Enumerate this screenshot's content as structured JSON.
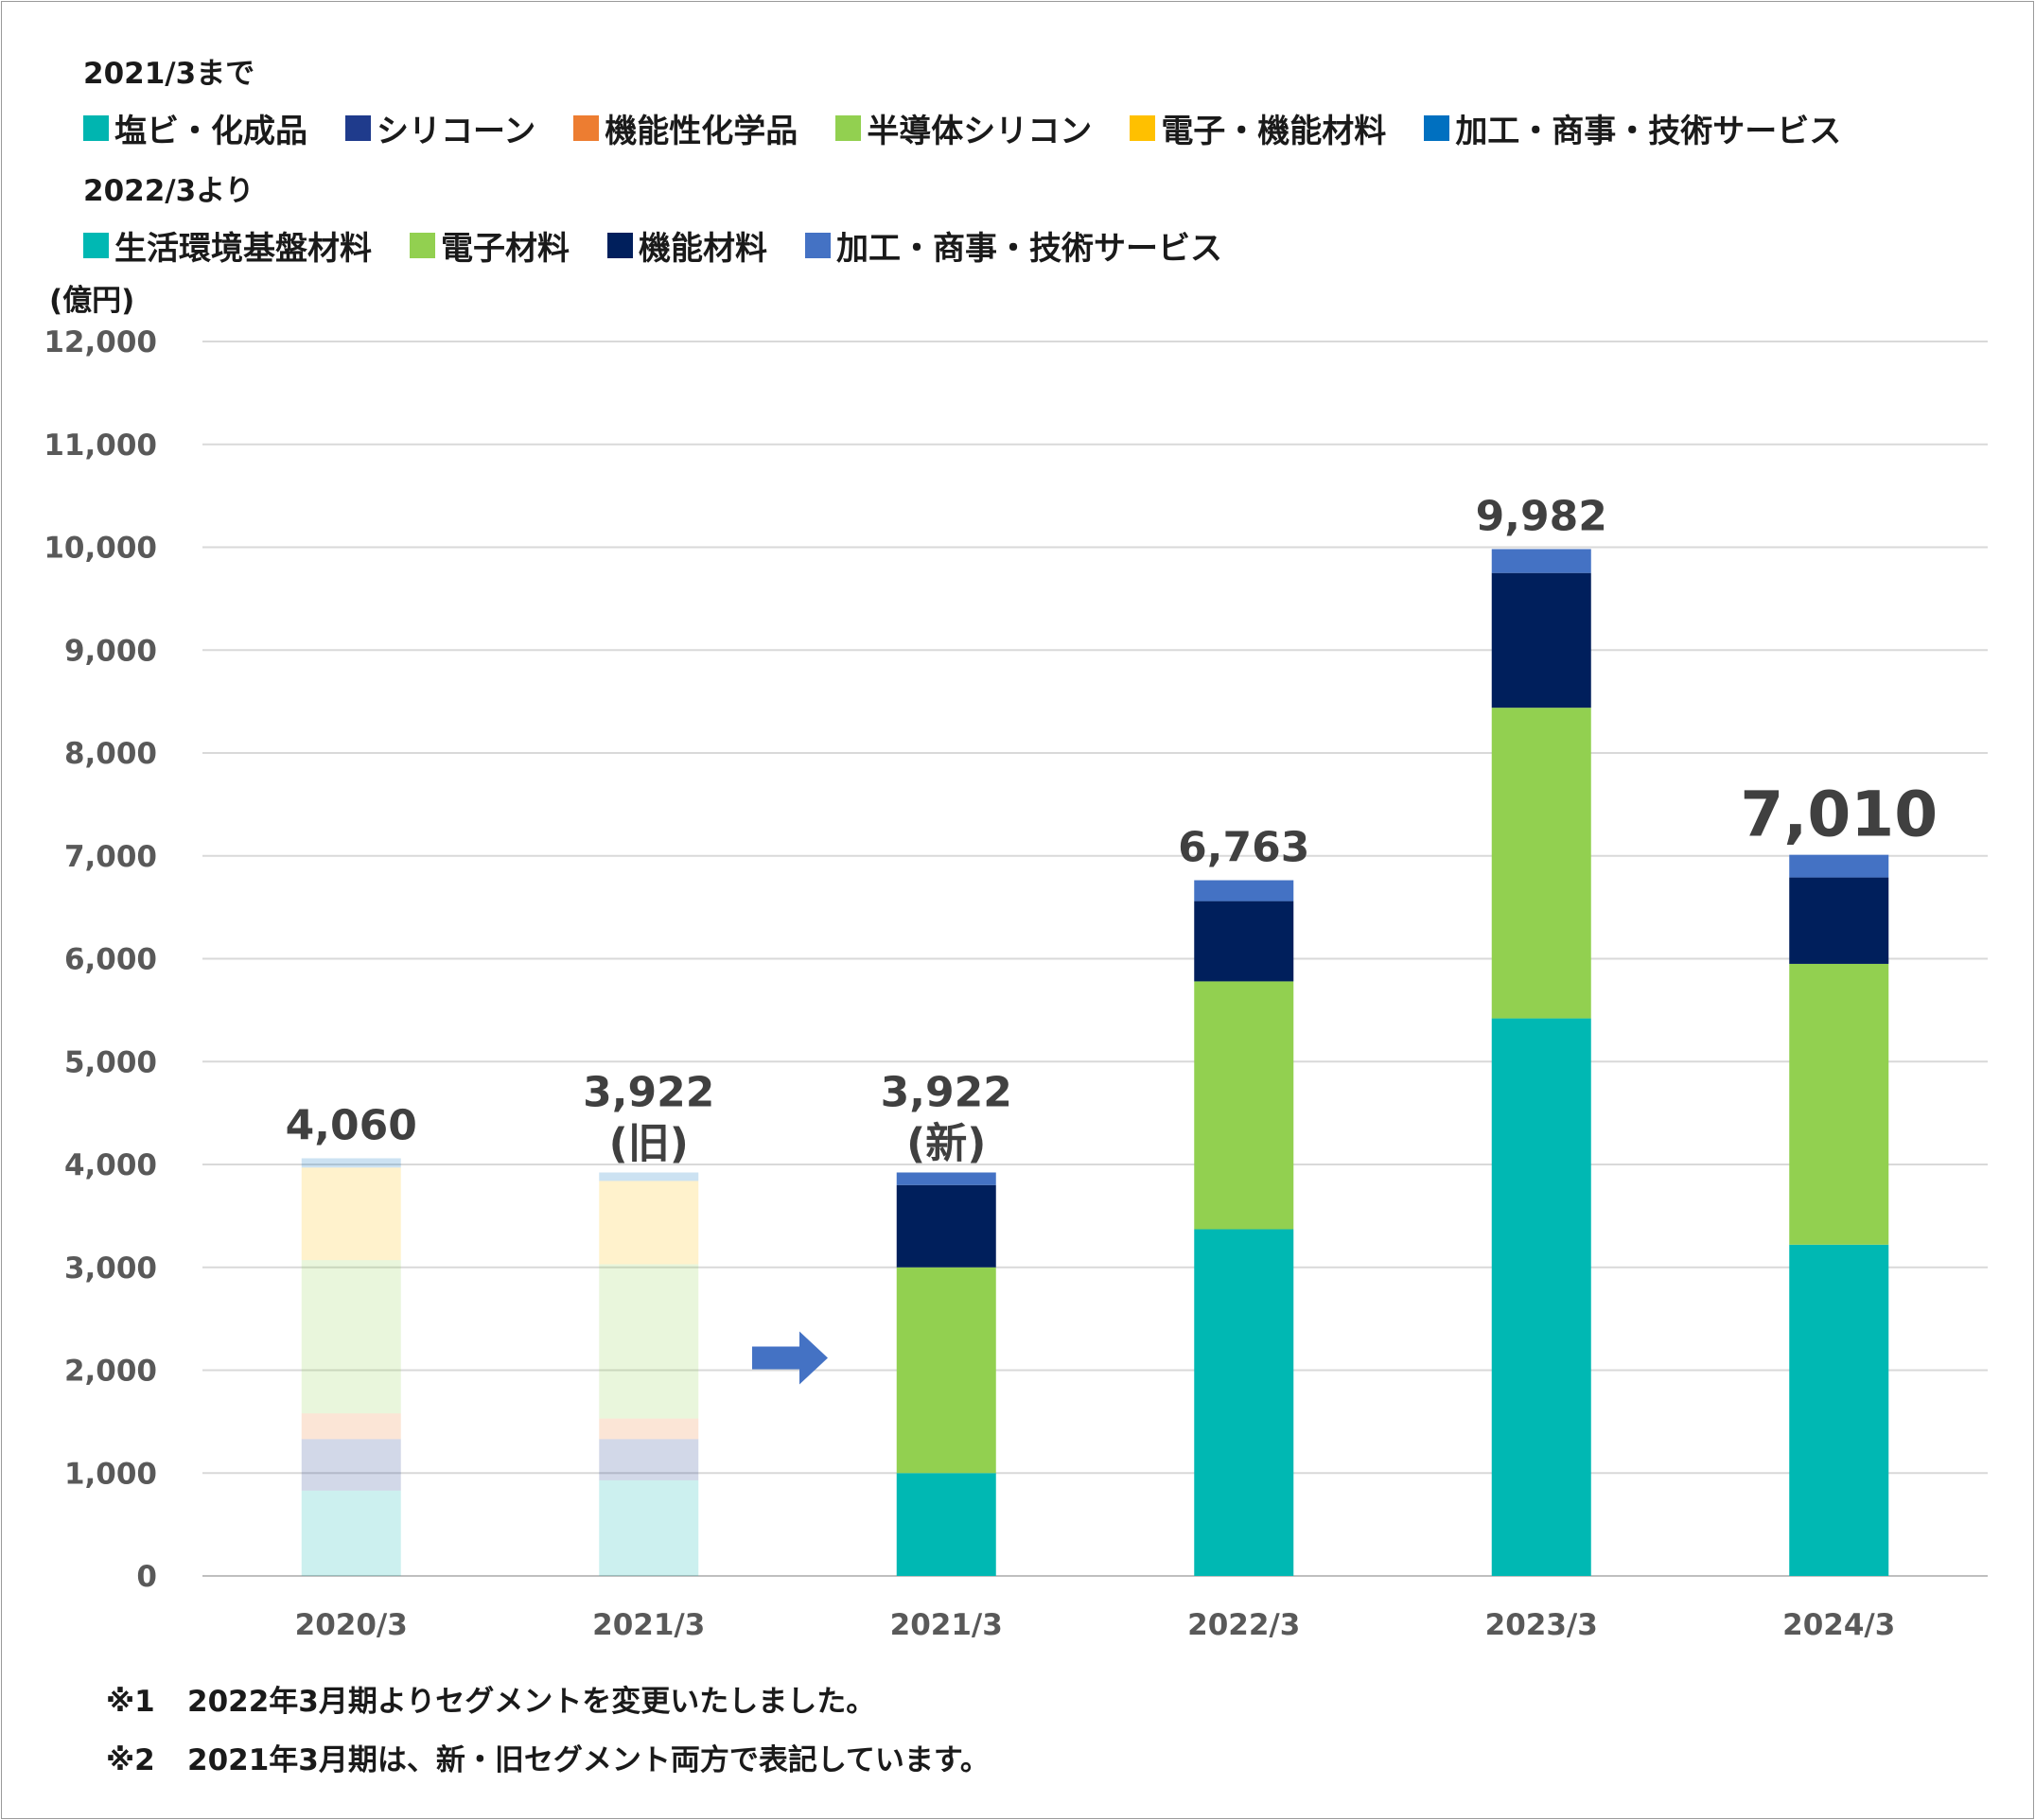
{
  "legend": {
    "old_title": "2021/3まで",
    "old_items": [
      {
        "label": "塩ビ・化成品",
        "color": "#00b5b0"
      },
      {
        "label": "シリコーン",
        "color": "#1f3b8c"
      },
      {
        "label": "機能性化学品",
        "color": "#ed7d31"
      },
      {
        "label": "半導体シリコン",
        "color": "#92d050"
      },
      {
        "label": "電子・機能材料",
        "color": "#ffc000"
      },
      {
        "label": "加工・商事・技術サービス",
        "color": "#0070c0"
      }
    ],
    "new_title": "2022/3より",
    "new_items": [
      {
        "label": "生活環境基盤材料",
        "color": "#00b8b3"
      },
      {
        "label": "電子材料",
        "color": "#92d050"
      },
      {
        "label": "機能材料",
        "color": "#001f5c"
      },
      {
        "label": "加工・商事・技術サービス",
        "color": "#4472c4"
      }
    ]
  },
  "unit_label": "(億円)",
  "notes": [
    {
      "mark": "※1",
      "text": "2022年3月期よりセグメントを変更いたしました。"
    },
    {
      "mark": "※2",
      "text": "2021年3月期は、新・旧セグメント両方で表記しています。"
    }
  ],
  "chart_data": {
    "type": "bar",
    "stacked": true,
    "ylim": [
      0,
      12000
    ],
    "ytick_step": 1000,
    "ytick_labels": [
      "0",
      "1,000",
      "2,000",
      "3,000",
      "4,000",
      "5,000",
      "6,000",
      "7,000",
      "8,000",
      "9,000",
      "10,000",
      "11,000",
      "12,000"
    ],
    "grid": true,
    "categories": [
      "2020/3",
      "2021/3",
      "2021/3",
      "2022/3",
      "2023/3",
      "2024/3"
    ],
    "totals": [
      "4,060",
      "3,922",
      "3,922",
      "6,763",
      "9,982",
      "7,010"
    ],
    "total_sublabels": [
      "",
      "(旧)",
      "(新)",
      "",
      "",
      ""
    ],
    "arrow_between": [
      1,
      2
    ],
    "arrow_color": "#4472c4",
    "series": [
      {
        "name": "塩ビ・化成品",
        "color": "#00b5b0",
        "faded": true,
        "values": [
          830,
          930,
          0,
          0,
          0,
          0
        ]
      },
      {
        "name": "シリコーン",
        "color": "#1f3b8c",
        "faded": true,
        "values": [
          500,
          400,
          0,
          0,
          0,
          0
        ]
      },
      {
        "name": "機能性化学品",
        "color": "#ed7d31",
        "faded": true,
        "values": [
          250,
          200,
          0,
          0,
          0,
          0
        ]
      },
      {
        "name": "半導体シリコン",
        "color": "#92d050",
        "faded": true,
        "values": [
          1490,
          1500,
          0,
          0,
          0,
          0
        ]
      },
      {
        "name": "電子・機能材料",
        "color": "#ffc000",
        "faded": true,
        "values": [
          900,
          810,
          0,
          0,
          0,
          0
        ]
      },
      {
        "name": "加工・商事・技術サービス",
        "color": "#0070c0",
        "faded": true,
        "values": [
          90,
          82,
          0,
          0,
          0,
          0
        ]
      },
      {
        "name": "生活環境基盤材料",
        "color": "#00b8b3",
        "values": [
          0,
          0,
          1000,
          3370,
          5420,
          3220
        ]
      },
      {
        "name": "電子材料",
        "color": "#92d050",
        "values": [
          0,
          0,
          2000,
          2410,
          3020,
          2730
        ]
      },
      {
        "name": "機能材料",
        "color": "#001f5c",
        "values": [
          0,
          0,
          800,
          780,
          1310,
          840
        ]
      },
      {
        "name": "加工・商事・技術サービス",
        "color": "#4472c4",
        "values": [
          0,
          0,
          122,
          203,
          232,
          220
        ]
      }
    ]
  }
}
